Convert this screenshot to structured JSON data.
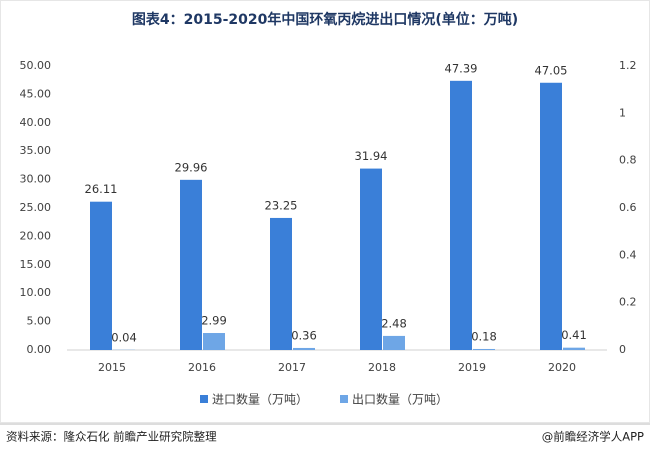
{
  "chart_data": {
    "type": "bar",
    "title": "图表4：2015-2020年中国环氧丙烷进出口情况(单位：万吨)",
    "categories": [
      "2015",
      "2016",
      "2017",
      "2018",
      "2019",
      "2020"
    ],
    "series": [
      {
        "name": "进口数量（万吨）",
        "color": "#3a7fd8",
        "values": [
          26.11,
          29.96,
          23.25,
          31.94,
          47.39,
          47.05
        ]
      },
      {
        "name": "出口数量（万吨）",
        "color": "#6ea6e6",
        "values": [
          0.04,
          2.99,
          0.36,
          2.48,
          0.18,
          0.41
        ]
      }
    ],
    "ylim": [
      0,
      50
    ],
    "yticks": [
      {
        "value": 0,
        "label": "0.00"
      },
      {
        "value": 5,
        "label": "5.00"
      },
      {
        "value": 10,
        "label": "10.00"
      },
      {
        "value": 15,
        "label": "15.00"
      },
      {
        "value": 20,
        "label": "20.00"
      },
      {
        "value": 25,
        "label": "25.00"
      },
      {
        "value": 30,
        "label": "30.00"
      },
      {
        "value": 35,
        "label": "35.00"
      },
      {
        "value": 40,
        "label": "40.00"
      },
      {
        "value": 45,
        "label": "45.00"
      },
      {
        "value": 50,
        "label": "50.00"
      }
    ],
    "y2lim": [
      0,
      1.2
    ],
    "y2ticks": [
      0,
      0.2,
      0.4,
      0.6,
      0.8,
      1,
      1.2
    ],
    "legend": "bottom",
    "source": "资料来源：隆众石化 前瞻产业研究院整理",
    "credit": "@前瞻经济学人APP"
  }
}
